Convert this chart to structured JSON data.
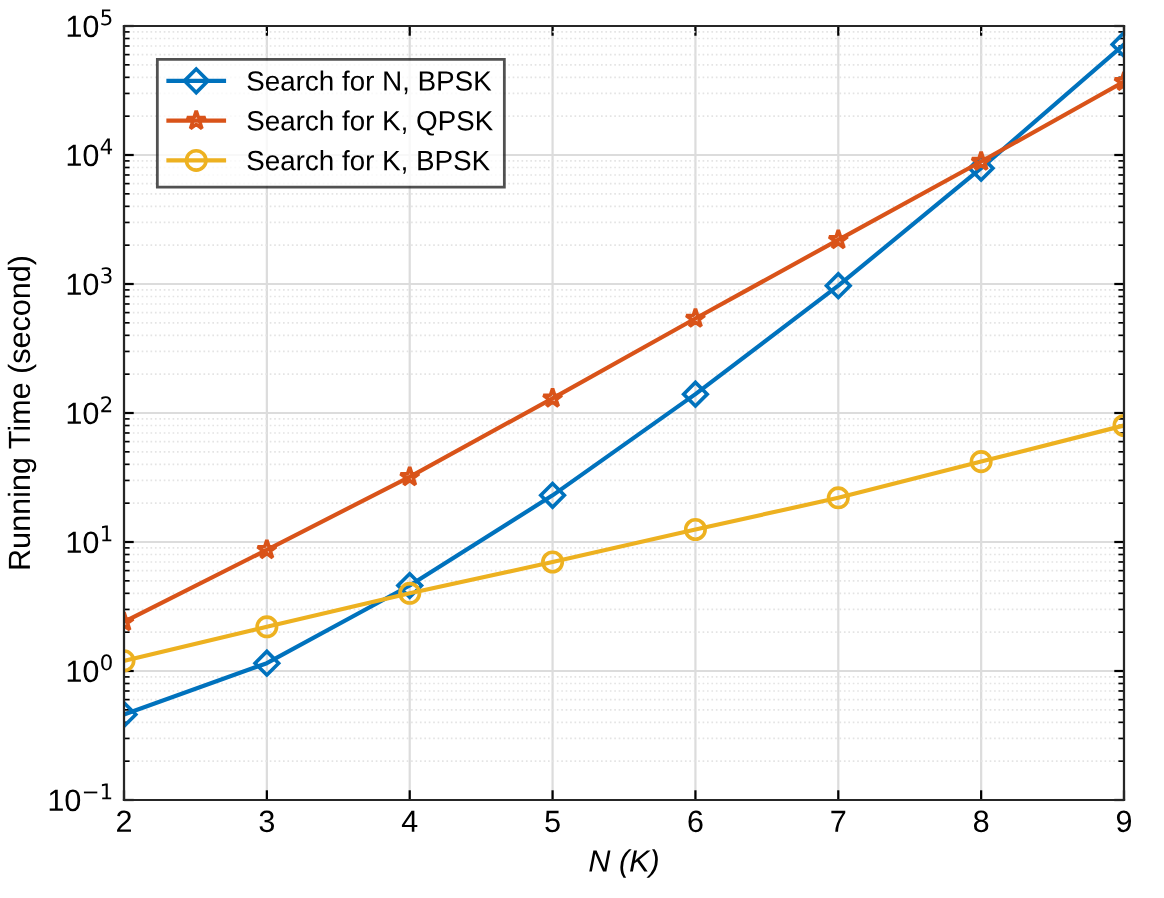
{
  "chart_data": {
    "type": "line",
    "xlabel": "N (K)",
    "ylabel": "Running Time (second)",
    "x": [
      2,
      3,
      4,
      5,
      6,
      7,
      8,
      9
    ],
    "series": [
      {
        "name": "Search for N, BPSK",
        "color": "#0072bd",
        "marker": "diamond",
        "values": [
          0.46,
          1.15,
          4.6,
          23,
          140,
          970,
          7900,
          72000
        ]
      },
      {
        "name": "Search for K, QPSK",
        "color": "#d95319",
        "marker": "star",
        "values": [
          2.4,
          8.7,
          32,
          130,
          540,
          2200,
          8900,
          37000
        ]
      },
      {
        "name": "Search for K, BPSK",
        "color": "#edb120",
        "marker": "circle",
        "values": [
          1.2,
          2.2,
          4.0,
          7.0,
          12.5,
          22,
          42,
          80
        ]
      }
    ],
    "log": "y",
    "xlim": [
      2,
      9
    ],
    "xticks": [
      2,
      3,
      4,
      5,
      6,
      7,
      8,
      9
    ],
    "ylim": [
      0.1,
      100000
    ],
    "yticks": [
      {
        "value": 0.1,
        "label": "10$^{−1}$"
      },
      {
        "value": 1,
        "label": "10$^{0}$"
      },
      {
        "value": 10,
        "label": "10$^{1}$"
      },
      {
        "value": 100,
        "label": "10$^{2}$"
      },
      {
        "value": 1000,
        "label": "10$^{3}$"
      },
      {
        "value": 10000,
        "label": "10$^{4}$"
      },
      {
        "value": 100000,
        "label": "10$^{5}$"
      }
    ],
    "grid": true,
    "legend": "top left",
    "line_style": "solid"
  }
}
